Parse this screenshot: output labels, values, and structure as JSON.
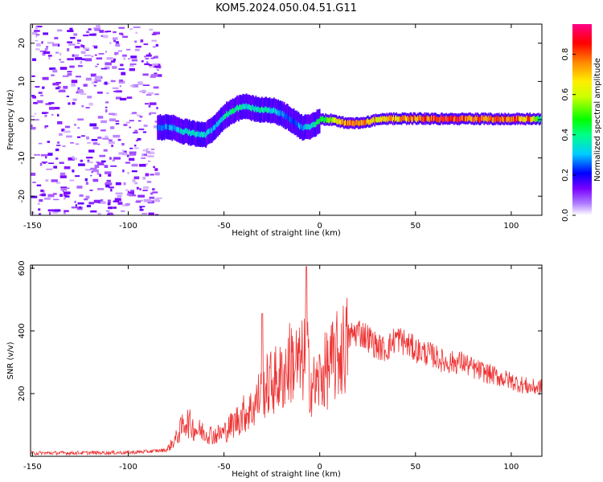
{
  "title": "KOM5.2024.050.04.51.G11",
  "chart_data": [
    {
      "type": "heatmap",
      "xlabel": "Height of straight line (km)",
      "ylabel": "Frequency (Hz)",
      "xlim": [
        -151,
        116
      ],
      "ylim": [
        -25,
        25
      ],
      "xticks": [
        -150,
        -100,
        -50,
        0,
        50,
        100
      ],
      "yticks": [
        -20,
        -10,
        0,
        10,
        20
      ],
      "colorbar": {
        "label": "Normalized spectral amplitude",
        "range": [
          0,
          0.95
        ],
        "ticks": [
          0.0,
          0.2,
          0.4,
          0.6,
          0.8
        ]
      },
      "frequency_track": {
        "x": [
          -85,
          -78,
          -72,
          -66,
          -60,
          -55,
          -50,
          -45,
          -40,
          -35,
          -30,
          -25,
          -20,
          -15,
          -10,
          -5,
          0,
          5,
          10,
          15,
          20,
          25,
          30,
          40,
          50,
          60,
          70,
          80,
          90,
          100,
          110,
          115
        ],
        "y": [
          -2,
          -2,
          -3,
          -3.5,
          -4,
          -2,
          1,
          2.5,
          3.5,
          3,
          2.5,
          2.5,
          1.5,
          0,
          -2,
          -2,
          0,
          0,
          -0.5,
          -1,
          -1,
          -0.5,
          0,
          0.3,
          0.3,
          0.2,
          0.2,
          0.2,
          0.2,
          0.2,
          0.2,
          0.1
        ],
        "amplitude": [
          0.25,
          0.3,
          0.35,
          0.35,
          0.35,
          0.3,
          0.4,
          0.45,
          0.35,
          0.4,
          0.4,
          0.35,
          0.3,
          0.25,
          0.3,
          0.35,
          0.5,
          0.55,
          0.7,
          0.8,
          0.8,
          0.75,
          0.7,
          0.75,
          0.8,
          0.85,
          0.85,
          0.85,
          0.8,
          0.85,
          0.75,
          0.4
        ]
      },
      "noise_region_x": [
        -151,
        -85
      ]
    },
    {
      "type": "line",
      "xlabel": "Height of straight line (km)",
      "ylabel": "SNR (v/v)",
      "xlim": [
        -151,
        116
      ],
      "ylim": [
        0,
        610
      ],
      "xticks": [
        -150,
        -100,
        -50,
        0,
        50,
        100
      ],
      "yticks": [
        200,
        400,
        600
      ],
      "color": "#ee3333",
      "envelope": {
        "x": [
          -150,
          -100,
          -90,
          -80,
          -75,
          -70,
          -65,
          -60,
          -55,
          -50,
          -45,
          -40,
          -35,
          -30,
          -25,
          -20,
          -15,
          -10,
          -7,
          -5,
          -2,
          0,
          5,
          10,
          15,
          20,
          25,
          30,
          35,
          40,
          45,
          50,
          55,
          60,
          65,
          70,
          75,
          80,
          85,
          90,
          95,
          100,
          105,
          110,
          115
        ],
        "y": [
          10,
          12,
          15,
          20,
          60,
          120,
          90,
          80,
          70,
          80,
          110,
          140,
          160,
          220,
          250,
          260,
          320,
          300,
          350,
          250,
          230,
          260,
          300,
          340,
          380,
          400,
          380,
          350,
          340,
          380,
          360,
          340,
          330,
          320,
          300,
          300,
          300,
          280,
          270,
          260,
          250,
          240,
          230,
          220,
          220
        ]
      }
    }
  ]
}
